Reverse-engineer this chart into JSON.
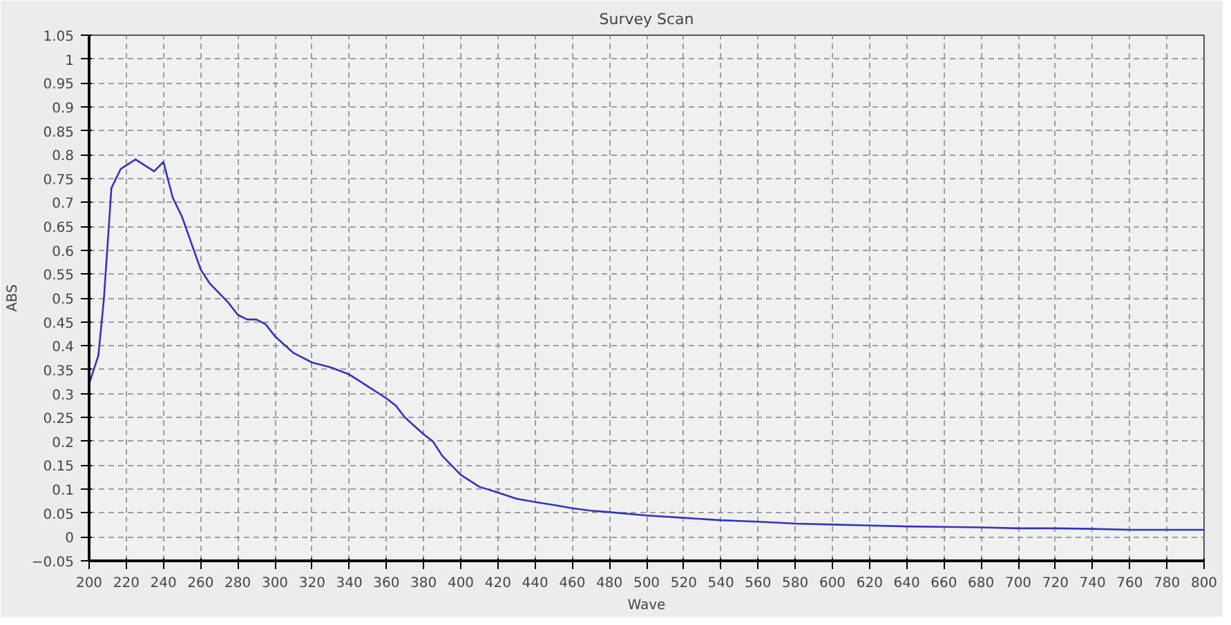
{
  "chart_data": {
    "type": "line",
    "title": "Survey Scan",
    "xlabel": "Wave",
    "ylabel": "ABS",
    "x": [
      200,
      205,
      208,
      212,
      217,
      225,
      235,
      240,
      245,
      250,
      260,
      265,
      275,
      280,
      285,
      290,
      295,
      300,
      310,
      320,
      330,
      340,
      350,
      360,
      365,
      370,
      380,
      385,
      390,
      400,
      410,
      420,
      430,
      440,
      450,
      460,
      470,
      480,
      500,
      520,
      540,
      560,
      580,
      600,
      620,
      640,
      660,
      680,
      700,
      720,
      740,
      760,
      780,
      800
    ],
    "series": [
      {
        "color": "#3333bb",
        "values": [
          0.32,
          0.38,
          0.5,
          0.73,
          0.77,
          0.79,
          0.765,
          0.785,
          0.71,
          0.67,
          0.56,
          0.53,
          0.49,
          0.465,
          0.455,
          0.455,
          0.445,
          0.42,
          0.385,
          0.365,
          0.355,
          0.34,
          0.315,
          0.29,
          0.275,
          0.25,
          0.215,
          0.2,
          0.17,
          0.13,
          0.105,
          0.093,
          0.08,
          0.073,
          0.067,
          0.06,
          0.055,
          0.052,
          0.045,
          0.04,
          0.035,
          0.032,
          0.028,
          0.026,
          0.024,
          0.022,
          0.021,
          0.02,
          0.018,
          0.018,
          0.017,
          0.015,
          0.015,
          0.015
        ]
      }
    ],
    "xlim": [
      200,
      800
    ],
    "ylim": [
      -0.05,
      1.05
    ],
    "xticks": [
      200,
      220,
      240,
      260,
      280,
      300,
      320,
      340,
      360,
      380,
      400,
      420,
      440,
      460,
      480,
      500,
      520,
      540,
      560,
      580,
      600,
      620,
      640,
      660,
      680,
      700,
      720,
      740,
      760,
      780,
      800
    ],
    "yticks": [
      -0.05,
      0,
      0.05,
      0.1,
      0.15,
      0.2,
      0.25,
      0.3,
      0.35,
      0.4,
      0.45,
      0.5,
      0.55,
      0.6,
      0.65,
      0.7,
      0.75,
      0.8,
      0.85,
      0.9,
      0.95,
      1,
      1.05
    ],
    "grid": true,
    "line_style": "solid"
  }
}
